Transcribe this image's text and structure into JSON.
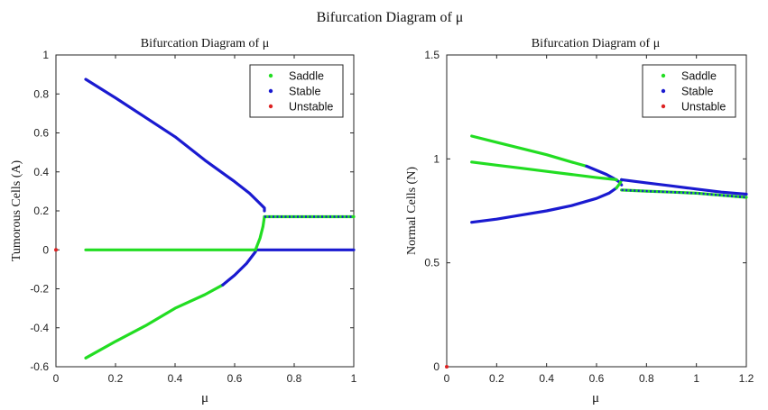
{
  "figure": {
    "suptitle": "Bifurcation Diagram of μ"
  },
  "colors": {
    "saddle": "#22dd22",
    "stable": "#1a1ad0",
    "unstable": "#dd2222",
    "axis": "#262626",
    "background": "#ffffff"
  },
  "chart_data": [
    {
      "type": "scatter",
      "title": "Bifurcation Diagram of μ",
      "xlabel": "μ",
      "ylabel": "Tumorous Cells (A)",
      "xlim": [
        0,
        1
      ],
      "ylim": [
        -0.6,
        1
      ],
      "xticks": [
        0,
        0.2,
        0.4,
        0.6,
        0.8,
        1
      ],
      "xtick_labels": [
        "0",
        "0.2",
        "0.4",
        "0.6",
        "0.8",
        "1"
      ],
      "yticks": [
        -0.6,
        -0.4,
        -0.2,
        0,
        0.2,
        0.4,
        0.6,
        0.8,
        1
      ],
      "ytick_labels": [
        "-0.6",
        "-0.4",
        "-0.2",
        "0",
        "0.2",
        "0.4",
        "0.6",
        "0.8",
        "1"
      ],
      "grid": false,
      "legend_position": "top-right",
      "legend": [
        "Saddle",
        "Stable",
        "Unstable"
      ],
      "series": [
        {
          "name": "Stable",
          "kind": "stable",
          "x": [
            0.1,
            0.2,
            0.3,
            0.4,
            0.5,
            0.6,
            0.65,
            0.68,
            0.7,
            0.7
          ],
          "y": [
            0.875,
            0.78,
            0.68,
            0.58,
            0.46,
            0.35,
            0.29,
            0.245,
            0.215,
            0.2
          ]
        },
        {
          "name": "Saddle",
          "kind": "saddle",
          "x": [
            0.1,
            0.2,
            0.3,
            0.4,
            0.5,
            0.6,
            0.67
          ],
          "y": [
            0.0,
            0.0,
            0.0,
            0.0,
            0.0,
            0.0,
            0.0
          ]
        },
        {
          "name": "Stable",
          "kind": "stable",
          "x": [
            0.67,
            0.8,
            0.9,
            1.0
          ],
          "y": [
            0.0,
            0.0,
            0.0,
            0.0
          ]
        },
        {
          "name": "Saddle",
          "kind": "saddle",
          "x": [
            0.1,
            0.2,
            0.3,
            0.4,
            0.5,
            0.56
          ],
          "y": [
            -0.555,
            -0.47,
            -0.39,
            -0.3,
            -0.23,
            -0.18
          ]
        },
        {
          "name": "Stable",
          "kind": "stable",
          "x": [
            0.56,
            0.6,
            0.64,
            0.67
          ],
          "y": [
            -0.18,
            -0.13,
            -0.07,
            -0.01
          ]
        },
        {
          "name": "Saddle",
          "kind": "saddle",
          "x": [
            0.67,
            0.685,
            0.695,
            0.7
          ],
          "y": [
            0.0,
            0.06,
            0.12,
            0.17
          ]
        },
        {
          "name": "Saddle",
          "kind": "saddle",
          "x": [
            0.7,
            0.8,
            0.9,
            1.0
          ],
          "y": [
            0.17,
            0.17,
            0.17,
            0.17
          ]
        },
        {
          "name": "Stable",
          "kind": "stable-dotted",
          "x": [
            0.7,
            0.8,
            0.9,
            1.0
          ],
          "y": [
            0.17,
            0.17,
            0.17,
            0.17
          ]
        },
        {
          "name": "Unstable",
          "kind": "unstable-point",
          "x": [
            0
          ],
          "y": [
            0
          ]
        }
      ]
    },
    {
      "type": "scatter",
      "title": "Bifurcation Diagram of μ",
      "xlabel": "μ",
      "ylabel": "Normal Cells (N)",
      "xlim": [
        0,
        1.2
      ],
      "ylim": [
        0,
        1.5
      ],
      "xticks": [
        0,
        0.2,
        0.4,
        0.6,
        0.8,
        1,
        1.2
      ],
      "xtick_labels": [
        "0",
        "0.2",
        "0.4",
        "0.6",
        "0.8",
        "1",
        "1.2"
      ],
      "yticks": [
        0,
        0.5,
        1,
        1.5
      ],
      "ytick_labels": [
        "0",
        "0.5",
        "1",
        "1.5"
      ],
      "grid": false,
      "legend_position": "top-right",
      "legend": [
        "Saddle",
        "Stable",
        "Unstable"
      ],
      "series": [
        {
          "name": "Saddle",
          "kind": "saddle",
          "x": [
            0.1,
            0.2,
            0.3,
            0.4,
            0.5,
            0.56
          ],
          "y": [
            1.11,
            1.08,
            1.05,
            1.02,
            0.985,
            0.965
          ]
        },
        {
          "name": "Stable",
          "kind": "stable",
          "x": [
            0.56,
            0.6,
            0.64,
            0.67,
            0.69,
            0.7
          ],
          "y": [
            0.965,
            0.945,
            0.925,
            0.905,
            0.89,
            0.875
          ]
        },
        {
          "name": "Saddle",
          "kind": "saddle",
          "x": [
            0.1,
            0.2,
            0.3,
            0.4,
            0.5,
            0.6,
            0.68
          ],
          "y": [
            0.985,
            0.97,
            0.955,
            0.94,
            0.925,
            0.91,
            0.9
          ]
        },
        {
          "name": "Stable",
          "kind": "stable",
          "x": [
            0.1,
            0.2,
            0.3,
            0.4,
            0.5,
            0.6,
            0.65,
            0.68
          ],
          "y": [
            0.695,
            0.71,
            0.73,
            0.75,
            0.775,
            0.81,
            0.835,
            0.86
          ]
        },
        {
          "name": "Saddle",
          "kind": "saddle",
          "x": [
            0.68,
            0.695,
            0.7
          ],
          "y": [
            0.86,
            0.885,
            0.9
          ]
        },
        {
          "name": "Stable",
          "kind": "stable",
          "x": [
            0.7,
            0.8,
            0.9,
            1.0,
            1.1,
            1.2
          ],
          "y": [
            0.9,
            0.885,
            0.87,
            0.855,
            0.84,
            0.83
          ]
        },
        {
          "name": "Saddle",
          "kind": "saddle",
          "x": [
            0.7,
            0.8,
            0.9,
            1.0,
            1.1,
            1.2
          ],
          "y": [
            0.85,
            0.845,
            0.84,
            0.835,
            0.825,
            0.815
          ]
        },
        {
          "name": "Stable",
          "kind": "stable-dotted",
          "x": [
            0.7,
            0.8,
            0.9,
            1.0,
            1.1,
            1.2
          ],
          "y": [
            0.85,
            0.845,
            0.84,
            0.835,
            0.825,
            0.815
          ]
        },
        {
          "name": "Unstable",
          "kind": "unstable-point",
          "x": [
            0
          ],
          "y": [
            0
          ]
        }
      ]
    }
  ]
}
